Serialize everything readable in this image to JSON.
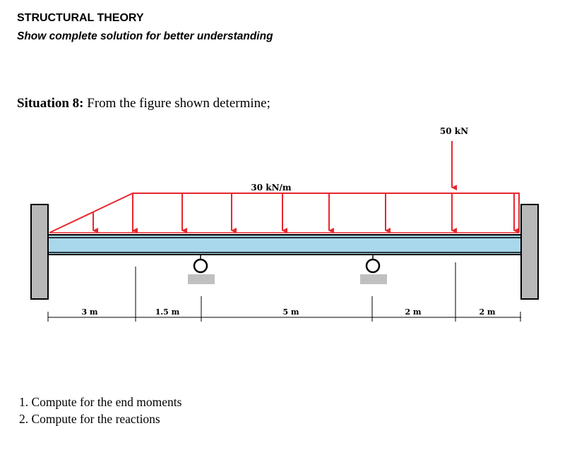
{
  "header": {
    "title": "STRUCTURAL THEORY",
    "subtitle": "Show complete solution for better understanding"
  },
  "situation": {
    "label": "Situation 8:",
    "text": "From the figure shown determine;"
  },
  "figure": {
    "load_distributed": "30 kN/m",
    "load_point": "50 kN",
    "dim_1": "3 m",
    "dim_2": "1.5 m",
    "dim_3": "5 m",
    "dim_4": "2 m",
    "dim_5": "2 m",
    "colors": {
      "load": "#e8262d",
      "beam": "#a9d8ec",
      "wall": "#b8b8b8",
      "support_base": "#c0c0c0"
    }
  },
  "questions": [
    "1. Compute for the end moments",
    "2. Compute for the reactions"
  ]
}
